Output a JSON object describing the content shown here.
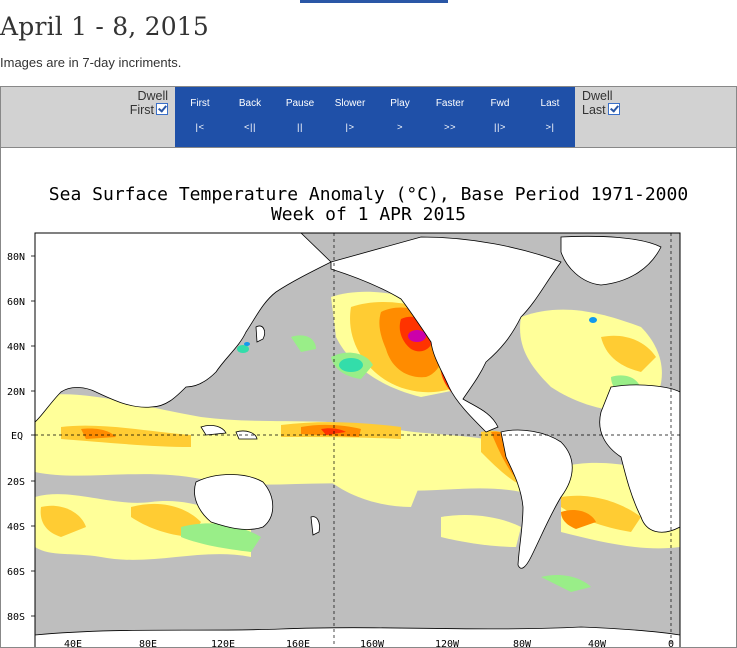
{
  "page": {
    "title": "April 1 - 8, 2015",
    "subtitle": "Images are in 7-day incriments."
  },
  "controls": {
    "dwell_first": {
      "label_line1": "Dwell",
      "label_line2": "First",
      "checked": true
    },
    "dwell_last": {
      "label_line1": "Dwell",
      "label_line2": "Last",
      "checked": true
    },
    "buttons": [
      {
        "label": "First",
        "symbol": "|<"
      },
      {
        "label": "Back",
        "symbol": "<||"
      },
      {
        "label": "Pause",
        "symbol": "||"
      },
      {
        "label": "Slower",
        "symbol": "|>"
      },
      {
        "label": "Play",
        "symbol": ">"
      },
      {
        "label": "Faster",
        "symbol": ">>"
      },
      {
        "label": "Fwd",
        "symbol": "||>"
      },
      {
        "label": "Last",
        "symbol": ">|"
      }
    ]
  },
  "map": {
    "title_line1": "Sea Surface Temperature Anomaly (°C), Base Period 1971-2000",
    "title_line2": "Week of  1 APR 2015",
    "lat_labels": [
      "80N",
      "60N",
      "40N",
      "20N",
      "EQ",
      "20S",
      "40S",
      "60S",
      "80S"
    ],
    "lon_labels": [
      "40E",
      "80E",
      "120E",
      "160E",
      "160W",
      "120W",
      "80W",
      "40W",
      "0"
    ],
    "colors": {
      "land": "#ffffff",
      "neutral": "#bebebe",
      "warm1": "#ffff99",
      "warm2": "#ffcc33",
      "warm3": "#ff8c00",
      "warm4": "#ff3300",
      "warm5": "#cc00aa",
      "cool1": "#99ee88",
      "cool2": "#33ddaa",
      "cool3": "#1199ee"
    }
  }
}
